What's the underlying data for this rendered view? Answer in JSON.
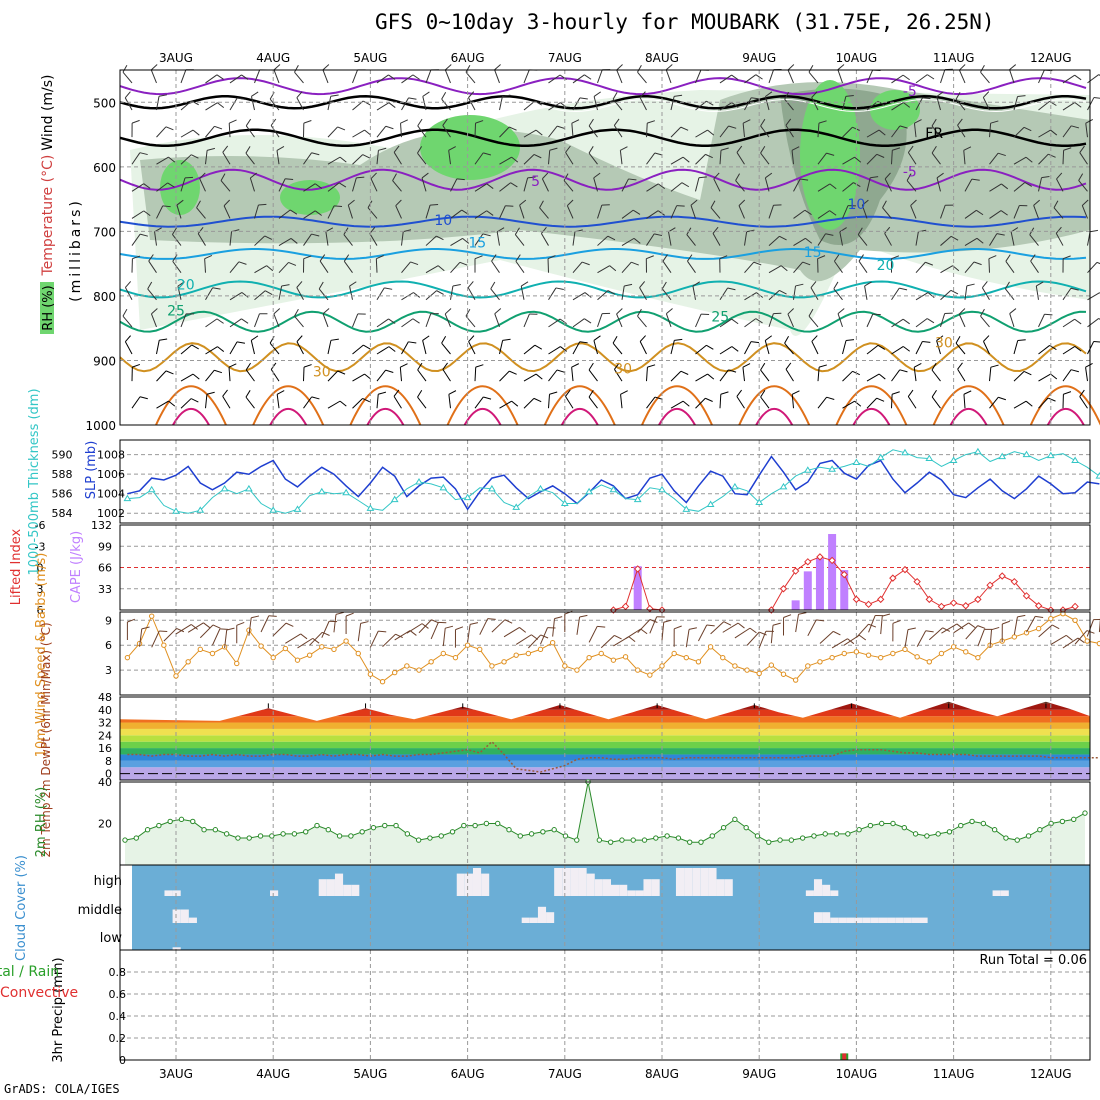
{
  "title": "GFS 0~10day 3-hourly for MOUBARK (31.75E, 26.25N)",
  "credit": "GrADS: COLA/IGES",
  "colors": {
    "rh_light": "#e6f3e6",
    "rh_mid": "#b5c9b5",
    "rh_dark": "#8fa890",
    "rh_green": "#6fd66f",
    "slp": "#1f3fd0",
    "thickness": "#33c6c6",
    "cape": "#c080ff",
    "li": "#e03030",
    "wind_speed": "#e09020",
    "barb": "#6b3f2a",
    "dewpoint": "#9a5a3a",
    "rh2m": "#2a8a2a",
    "cloud_bg": "#6baed6",
    "cloud_fill": "#f2eef4"
  },
  "chart_data": [
    {
      "type": "line",
      "panel": "upper-air",
      "title": "GFS 0~10day 3-hourly for MOUBARK (31.75E, 26.25N)",
      "x_ticks": [
        "3AUG",
        "4AUG",
        "5AUG",
        "6AUG",
        "7AUG",
        "8AUG",
        "9AUG",
        "10AUG",
        "11AUG",
        "12AUG"
      ],
      "ylabel": "(millibars)",
      "ylabel_parts": [
        "RH (%)",
        "Temperature (°C)",
        "Wind (m/s)"
      ],
      "y_ticks": [
        500,
        600,
        700,
        800,
        900,
        1000
      ],
      "ylim": [
        1000,
        450
      ],
      "contour_labels": [
        {
          "text": "-5",
          "x": 7.55,
          "y": 490
        },
        {
          "text": "5",
          "x": 3.7,
          "y": 630
        },
        {
          "text": "-5",
          "x": 7.55,
          "y": 615
        },
        {
          "text": "10",
          "x": 2.75,
          "y": 690
        },
        {
          "text": "10",
          "x": 7.0,
          "y": 665
        },
        {
          "text": "15",
          "x": 3.1,
          "y": 725
        },
        {
          "text": "15",
          "x": 6.55,
          "y": 740
        },
        {
          "text": "20",
          "x": 7.3,
          "y": 760
        },
        {
          "text": "20",
          "x": 0.1,
          "y": 790
        },
        {
          "text": "25",
          "x": 0.0,
          "y": 830
        },
        {
          "text": "25",
          "x": 5.6,
          "y": 840
        },
        {
          "text": "30",
          "x": 1.5,
          "y": 925
        },
        {
          "text": "30",
          "x": 4.6,
          "y": 920
        },
        {
          "text": "30",
          "x": 7.9,
          "y": 880
        },
        {
          "text": "FR",
          "x": 7.8,
          "y": 555
        }
      ]
    },
    {
      "type": "line",
      "panel": "slp-thickness",
      "ylabel_left": "1000-500mb Thickness (dm)",
      "ylabel_right": "SLP (mb)",
      "y_ticks_left": [
        584,
        586,
        588,
        590
      ],
      "y_ticks_right": [
        1002,
        1004,
        1006,
        1008
      ],
      "ylim_slp": [
        1001,
        1009.5
      ],
      "series": [
        {
          "name": "SLP (mb)",
          "values": [
            1004.0,
            1004.3,
            1005.6,
            1005.4,
            1005.9,
            1006.8,
            1005.1,
            1004.4,
            1005.1,
            1006.2,
            1006.0,
            1006.8,
            1007.4,
            1005.5,
            1004.7,
            1005.8,
            1006.7,
            1006.0,
            1004.8,
            1003.7,
            1005.1,
            1006.7,
            1005.8,
            1003.7,
            1004.8,
            1005.6,
            1005.7,
            1004.5,
            1002.4,
            1004.2,
            1005.6,
            1005.9,
            1004.6,
            1003.5,
            1004.2,
            1004.8,
            1004.0,
            1003.0,
            1004.1,
            1005.4,
            1004.8,
            1003.5,
            1003.9,
            1005.6,
            1006.0,
            1004.3,
            1003.1,
            1004.8,
            1006.3,
            1005.8,
            1004.0,
            1003.9,
            1005.9,
            1007.8,
            1006.2,
            1004.4,
            1005.2,
            1007.1,
            1007.4,
            1006.1,
            1005.5,
            1006.9,
            1007.4,
            1005.5,
            1004.1,
            1005.1,
            1006.2,
            1005.4,
            1003.9,
            1003.6,
            1004.6,
            1005.5,
            1004.3,
            1003.5,
            1004.5,
            1005.8,
            1005.0,
            1004.0,
            1004.1,
            1005.2,
            1005.0
          ]
        },
        {
          "name": "1000-500mb Thickness (dm)",
          "values": [
            1003.5,
            1003.6,
            1004.4,
            1002.8,
            1002.2,
            1002.0,
            1002.3,
            1003.6,
            1004.5,
            1004.0,
            1004.5,
            1003.0,
            1002.3,
            1002.0,
            1002.4,
            1003.8,
            1004.2,
            1004.0,
            1004.1,
            1003.3,
            1002.5,
            1002.3,
            1003.4,
            1004.5,
            1005.2,
            1005.0,
            1004.6,
            1003.4,
            1003.6,
            1004.6,
            1004.5,
            1003.1,
            1002.6,
            1003.7,
            1004.5,
            1004.1,
            1003.0,
            1003.0,
            1004.2,
            1004.9,
            1004.4,
            1003.5,
            1003.4,
            1004.6,
            1004.4,
            1003.5,
            1002.4,
            1002.2,
            1002.9,
            1003.7,
            1004.7,
            1004.3,
            1003.1,
            1004.0,
            1004.7,
            1005.8,
            1006.4,
            1006.7,
            1006.5,
            1006.8,
            1007.2,
            1006.8,
            1007.7,
            1008.5,
            1008.2,
            1007.7,
            1007.6,
            1006.8,
            1007.4,
            1008.0,
            1008.3,
            1007.3,
            1007.8,
            1008.3,
            1008.0,
            1007.4,
            1007.9,
            1008.1,
            1007.4,
            1006.7,
            1005.8
          ]
        }
      ]
    },
    {
      "type": "bar",
      "panel": "cape-li",
      "ylabel_left": "Lifted Index",
      "ylabel_right": "CAPE (J/kg)",
      "y_ticks_li": [
        -6,
        -3,
        0,
        3,
        6
      ],
      "y_ticks_cape": [
        33,
        66,
        99,
        132
      ],
      "ylim_cape": [
        0,
        132
      ],
      "ylim_li": [
        6,
        -6
      ],
      "cape_bars": [
        {
          "x": 4.75,
          "value": 68
        },
        {
          "x": 6.375,
          "value": 15
        },
        {
          "x": 6.5,
          "value": 60
        },
        {
          "x": 6.625,
          "value": 80
        },
        {
          "x": 6.75,
          "value": 118
        },
        {
          "x": 6.875,
          "value": 62
        }
      ],
      "series": [
        {
          "name": "Lifted Index",
          "x": [
            4.5,
            4.625,
            4.75,
            4.875,
            5.0,
            6.125,
            6.25,
            6.375,
            6.5,
            6.625,
            6.75,
            6.875,
            7.0,
            7.125,
            7.25,
            7.375,
            7.5,
            7.625,
            7.75,
            7.875,
            8.0,
            8.125,
            8.25,
            8.375,
            8.5,
            8.625,
            8.75,
            8.875,
            9.0,
            9.125,
            9.25
          ],
          "values": [
            6,
            5.5,
            0.2,
            5.8,
            6,
            6,
            3,
            0.5,
            -0.8,
            -1.5,
            -1,
            1,
            4.5,
            5.2,
            4.5,
            1.5,
            0.3,
            2,
            4.5,
            5.5,
            5,
            5.4,
            4.5,
            2.5,
            1.2,
            2,
            4,
            5.4,
            6,
            6,
            5.5
          ]
        }
      ]
    },
    {
      "type": "line",
      "panel": "wind10m",
      "ylabel": "10m Wind Speed & Barbs (m/s)",
      "y_ticks": [
        3,
        6,
        9
      ],
      "ylim": [
        0,
        10
      ],
      "series": [
        {
          "name": "10m Wind Speed",
          "values": [
            4.5,
            6.2,
            9.5,
            6.0,
            2.3,
            4.0,
            5.5,
            5.0,
            5.8,
            3.8,
            7.8,
            5.9,
            4.5,
            5.6,
            4.2,
            4.8,
            5.8,
            5.5,
            6.5,
            5.0,
            2.5,
            1.6,
            2.7,
            3.5,
            3.0,
            4.0,
            5.0,
            4.5,
            6.0,
            5.5,
            3.5,
            4.0,
            4.8,
            5.0,
            5.5,
            6.3,
            3.5,
            3.0,
            4.5,
            5.0,
            4.2,
            4.6,
            3.0,
            2.4,
            3.5,
            5.0,
            4.5,
            4.0,
            5.8,
            4.5,
            3.5,
            3.0,
            2.6,
            3.6,
            2.5,
            1.8,
            3.5,
            4.0,
            4.5,
            5.0,
            5.2,
            4.8,
            4.5,
            5.0,
            5.5,
            4.6,
            4.0,
            5.0,
            5.8,
            5.2,
            4.5,
            6.0,
            6.5,
            7.0,
            7.5,
            8.0,
            9.2,
            9.8,
            9.0,
            6.5,
            6.2
          ]
        }
      ]
    },
    {
      "type": "area",
      "panel": "temp2m",
      "ylabel": "2m Temp 2m DewPt (6hr Min/Max) (°C)",
      "y_ticks": [
        0,
        8,
        16,
        24,
        32,
        40,
        48
      ],
      "ylim": [
        -4,
        48
      ],
      "series": [
        {
          "name": "2m Temp",
          "x_daily_max": [
            0.95,
            1.95,
            2.95,
            3.95,
            4.95,
            5.95,
            6.95,
            7.95,
            8.95,
            9.95
          ],
          "max": [
            41,
            41,
            42,
            43,
            43,
            43,
            44,
            45,
            45,
            44
          ],
          "min": [
            33,
            33,
            34,
            34,
            34,
            34,
            35,
            35,
            36,
            35
          ]
        },
        {
          "name": "2m DewPt",
          "values": [
            12,
            12,
            11,
            12,
            12,
            11,
            11,
            12,
            11,
            12,
            11,
            11,
            12,
            12,
            11,
            11,
            12,
            11,
            12,
            12,
            11,
            12,
            11,
            11,
            12,
            12,
            13,
            14,
            15,
            13,
            20,
            12,
            3,
            2,
            1,
            3,
            5,
            9,
            10,
            10,
            9,
            9,
            10,
            10,
            10,
            9,
            10,
            10,
            10,
            10,
            10,
            10,
            10,
            10,
            10,
            10,
            11,
            11,
            11,
            14,
            15,
            15,
            15,
            14,
            13,
            13,
            12,
            12,
            12,
            12,
            11,
            11,
            11,
            11,
            11,
            11,
            10,
            10,
            10,
            10,
            10
          ]
        }
      ]
    },
    {
      "type": "line",
      "panel": "rh2m",
      "ylabel": "2m RH (%)",
      "y_ticks": [
        20,
        40
      ],
      "ylim": [
        0,
        40
      ],
      "series": [
        {
          "name": "2m RH",
          "values": [
            12,
            13,
            17,
            19,
            21,
            22,
            21,
            17,
            17,
            15,
            13,
            13,
            14,
            14,
            15,
            15,
            16,
            19,
            17,
            14,
            14,
            16,
            18,
            19,
            19,
            15,
            12,
            13,
            14,
            16,
            19,
            19,
            20,
            20,
            17,
            14,
            15,
            16,
            17,
            14,
            12,
            40,
            12,
            11,
            12,
            12,
            12,
            13,
            14,
            13,
            11,
            11,
            14,
            18,
            22,
            18,
            14,
            11,
            12,
            12,
            13,
            14,
            15,
            15,
            15,
            17,
            19,
            20,
            20,
            18,
            15,
            14,
            15,
            16,
            19,
            21,
            20,
            17,
            13,
            12,
            14,
            17,
            20,
            21,
            22,
            25
          ]
        }
      ]
    },
    {
      "type": "heatmap",
      "panel": "cloud",
      "ylabel": "Cloud Cover (%)",
      "levels": [
        "high",
        "middle",
        "low"
      ],
      "high": [
        0,
        0,
        0,
        0,
        20,
        20,
        0,
        0,
        0,
        0,
        0,
        0,
        0,
        0,
        0,
        0,
        0,
        20,
        0,
        0,
        0,
        0,
        0,
        60,
        60,
        80,
        40,
        40,
        0,
        0,
        0,
        0,
        0,
        0,
        0,
        0,
        0,
        0,
        0,
        0,
        80,
        80,
        100,
        80,
        0,
        0,
        0,
        0,
        0,
        0,
        0,
        0,
        100,
        100,
        100,
        100,
        80,
        60,
        60,
        40,
        40,
        20,
        20,
        60,
        60,
        0,
        0,
        100,
        100,
        100,
        100,
        100,
        60,
        60,
        0,
        0,
        0,
        0,
        0,
        0,
        0,
        0,
        0,
        20,
        60,
        40,
        20,
        0,
        0,
        0,
        0,
        0,
        0,
        0,
        0,
        0,
        0,
        0,
        0,
        0,
        0,
        0,
        0,
        0,
        0,
        0,
        20,
        20,
        0,
        0,
        0,
        0,
        0,
        0,
        0,
        0,
        0,
        0
      ],
      "middle": [
        0,
        0,
        0,
        0,
        0,
        50,
        50,
        20,
        0,
        0,
        0,
        0,
        0,
        0,
        0,
        0,
        0,
        0,
        0,
        0,
        0,
        0,
        0,
        0,
        0,
        0,
        0,
        0,
        0,
        0,
        0,
        0,
        0,
        0,
        0,
        0,
        0,
        0,
        0,
        0,
        0,
        0,
        0,
        0,
        0,
        0,
        0,
        0,
        20,
        20,
        60,
        40,
        0,
        0,
        0,
        0,
        0,
        0,
        0,
        0,
        0,
        0,
        0,
        0,
        0,
        0,
        0,
        0,
        0,
        0,
        0,
        0,
        0,
        0,
        0,
        0,
        0,
        0,
        0,
        0,
        0,
        0,
        0,
        0,
        40,
        40,
        20,
        20,
        20,
        20,
        20,
        20,
        20,
        20,
        20,
        20,
        20,
        20,
        0,
        0,
        0,
        0,
        0,
        0,
        0,
        0,
        0,
        0,
        0,
        0,
        0,
        0,
        0,
        0,
        0,
        0,
        0,
        0
      ],
      "low": [
        0,
        0,
        0,
        0,
        0,
        10,
        0,
        0,
        0,
        0,
        0,
        0,
        0,
        0,
        0,
        0,
        0,
        0,
        0,
        0,
        0,
        0,
        0,
        0,
        0,
        0,
        0,
        0,
        0,
        0,
        0,
        0,
        0,
        0,
        0,
        0,
        0,
        0,
        0,
        0,
        0,
        0,
        0,
        0,
        0,
        0,
        0,
        0,
        0,
        0,
        0,
        0,
        0,
        0,
        0,
        0,
        0,
        0,
        0,
        0,
        0,
        0,
        0,
        0,
        0,
        0,
        0,
        0,
        0,
        0,
        0,
        0,
        0,
        0,
        0,
        0,
        0,
        0,
        0,
        0,
        0,
        0,
        0,
        0,
        0,
        0,
        0,
        0,
        0,
        0,
        0,
        0,
        0,
        0,
        0,
        0,
        0,
        0,
        0,
        0,
        0,
        0,
        0,
        0,
        0,
        0,
        0,
        0,
        0,
        0,
        0,
        0,
        0,
        0,
        0,
        0,
        0,
        0,
        0,
        0
      ]
    },
    {
      "type": "bar",
      "panel": "precip",
      "ylabel": "3hr Precip (mm)",
      "ylabel_parts": [
        "Total / Rain",
        "Convective"
      ],
      "annotation": "Run Total = 0.06",
      "y_ticks": [
        0,
        0.2,
        0.4,
        0.6,
        0.8
      ],
      "ylim": [
        0,
        1
      ],
      "bars": [
        {
          "x": 6.875,
          "total": 0.06,
          "convective": 0.06
        }
      ]
    }
  ]
}
